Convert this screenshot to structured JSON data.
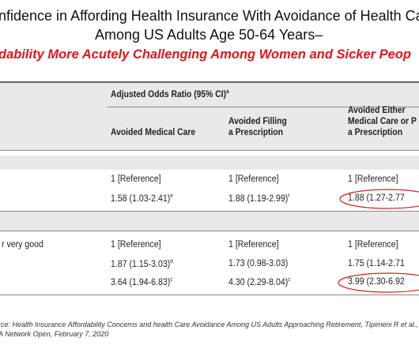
{
  "title": [
    "nfidence in Affording Health Insurance With Avoidance of Health Ca",
    "Among US Adults Age 50-64 Years–"
  ],
  "subtitle": "dability More Acutely Challenging Among Women and Sicker Peop",
  "table": {
    "group_header": {
      "text": "Adjusted Odds Ratio (95% CI)",
      "sup": "a"
    },
    "columns": [
      [
        "Avoided Medical Care"
      ],
      [
        "Avoided Filling",
        "a Prescription"
      ],
      [
        "Avoided Either",
        "Medical Care or P",
        "a Prescription"
      ]
    ],
    "rows": [
      {
        "cells": [
          {
            "text": "1 [Reference]"
          },
          {
            "text": "1 [Reference]"
          },
          {
            "text": "1 [Reference]"
          }
        ]
      },
      {
        "cells": [
          {
            "text": "1.58 (1.03-2.41)",
            "sup": "e"
          },
          {
            "text": "1.88 (1.19-2.99)",
            "sup": "f"
          },
          {
            "text": "1.88 (1.27-2.77"
          }
        ]
      },
      {
        "label": "r very good",
        "cells": [
          {
            "text": "1 [Reference]"
          },
          {
            "text": "1 [Reference]"
          },
          {
            "text": "1 [Reference]"
          }
        ]
      },
      {
        "cells": [
          {
            "text": "1.87 (1.15-3.03)",
            "sup": "d"
          },
          {
            "text": "1.73 (0.98-3.03)"
          },
          {
            "text": "1.75 (1.14-2.71"
          }
        ]
      },
      {
        "label": "",
        "cells": [
          {
            "text": "3.64 (1.94-6.83)",
            "sup": "c"
          },
          {
            "text": "4.30 (2.29-8.04)",
            "sup": "c"
          },
          {
            "text": "3.99 (2.30-6.92"
          }
        ]
      }
    ]
  },
  "source": [
    "rce: Health Insurance Affordability Concerns and health Care Avoidance Among US Adults Approaching Retirement, Tipimeni R et al.,",
    "A Network Open, February 7, 2020"
  ]
}
